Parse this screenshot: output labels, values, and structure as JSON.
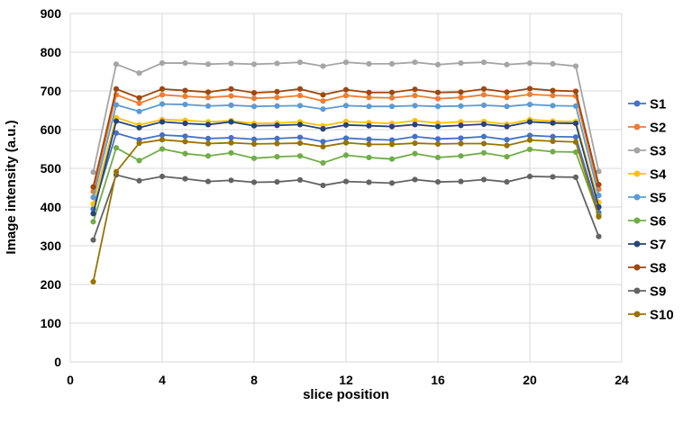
{
  "chart_data": {
    "type": "line",
    "title": "",
    "xlabel": "slice position",
    "ylabel": "Image intensity (a.u.)",
    "xlim": [
      0,
      24
    ],
    "ylim": [
      0,
      900
    ],
    "x_ticks": [
      0,
      4,
      8,
      12,
      16,
      20,
      24
    ],
    "y_ticks": [
      0,
      100,
      200,
      300,
      400,
      500,
      600,
      700,
      800,
      900
    ],
    "grid": true,
    "legend_position": "right",
    "colors": {
      "grid": "#D9D9D9",
      "text": "#000000",
      "background": "#FFFFFF"
    },
    "x": [
      1,
      2,
      3,
      4,
      5,
      6,
      7,
      8,
      9,
      10,
      11,
      12,
      13,
      14,
      15,
      16,
      17,
      18,
      19,
      20,
      21,
      22,
      23
    ],
    "series": [
      {
        "name": "S1",
        "color": "#4472C4",
        "values": [
          395,
          591,
          574,
          586,
          583,
          577,
          579,
          575,
          577,
          580,
          569,
          578,
          575,
          573,
          582,
          576,
          578,
          582,
          574,
          585,
          582,
          581,
          386
        ]
      },
      {
        "name": "S2",
        "color": "#ED7D31",
        "values": [
          440,
          690,
          668,
          690,
          686,
          683,
          687,
          681,
          683,
          688,
          674,
          688,
          683,
          682,
          688,
          680,
          683,
          690,
          683,
          691,
          688,
          687,
          446
        ]
      },
      {
        "name": "S3",
        "color": "#A5A5A5",
        "values": [
          490,
          769,
          746,
          772,
          772,
          769,
          771,
          769,
          771,
          774,
          764,
          774,
          770,
          770,
          774,
          768,
          772,
          774,
          768,
          772,
          770,
          764,
          492
        ]
      },
      {
        "name": "S4",
        "color": "#FFC000",
        "values": [
          408,
          631,
          612,
          626,
          624,
          620,
          623,
          616,
          617,
          620,
          610,
          621,
          618,
          616,
          623,
          617,
          620,
          621,
          614,
          626,
          622,
          621,
          412
        ]
      },
      {
        "name": "S5",
        "color": "#5B9BD5",
        "values": [
          425,
          664,
          647,
          666,
          665,
          661,
          663,
          660,
          661,
          662,
          653,
          662,
          660,
          660,
          662,
          660,
          661,
          663,
          660,
          665,
          662,
          661,
          430
        ]
      },
      {
        "name": "S6",
        "color": "#70AD47",
        "values": [
          362,
          553,
          520,
          550,
          538,
          532,
          540,
          526,
          530,
          532,
          514,
          534,
          528,
          524,
          538,
          528,
          532,
          540,
          530,
          549,
          543,
          542,
          378
        ]
      },
      {
        "name": "S7",
        "color": "#264478",
        "values": [
          383,
          622,
          605,
          620,
          616,
          613,
          620,
          610,
          611,
          613,
          602,
          612,
          610,
          608,
          613,
          608,
          611,
          614,
          608,
          620,
          617,
          616,
          400
        ]
      },
      {
        "name": "S8",
        "color": "#9E480E",
        "values": [
          452,
          705,
          682,
          705,
          701,
          697,
          705,
          695,
          698,
          705,
          690,
          703,
          696,
          696,
          704,
          696,
          697,
          705,
          697,
          706,
          701,
          699,
          458
        ]
      },
      {
        "name": "S9",
        "color": "#636363",
        "values": [
          315,
          483,
          468,
          479,
          473,
          466,
          469,
          464,
          465,
          470,
          456,
          466,
          464,
          462,
          471,
          465,
          466,
          471,
          465,
          479,
          478,
          477,
          324
        ]
      },
      {
        "name": "S10",
        "color": "#997300",
        "values": [
          207,
          491,
          565,
          574,
          569,
          564,
          566,
          563,
          564,
          565,
          556,
          566,
          562,
          562,
          565,
          563,
          564,
          564,
          559,
          573,
          570,
          568,
          375
        ]
      }
    ]
  }
}
